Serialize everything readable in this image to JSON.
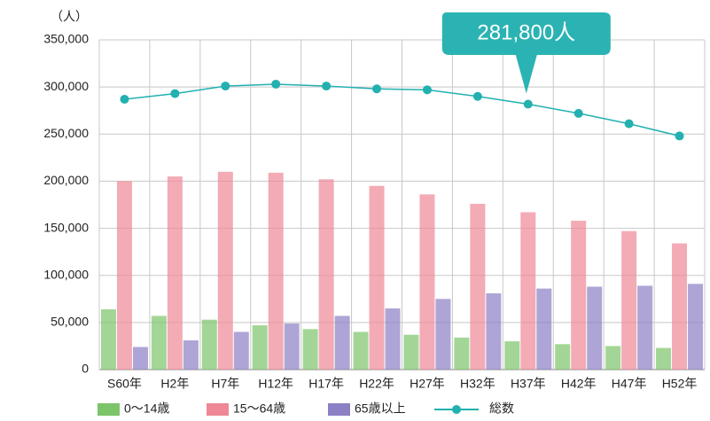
{
  "chart_data": {
    "type": "bar",
    "y_unit_label": "（人）",
    "annotation": "281,800人",
    "annotation_color": "#2bb3b3",
    "categories": [
      "S60年",
      "H2年",
      "H7年",
      "H12年",
      "H17年",
      "H22年",
      "H27年",
      "H32年",
      "H37年",
      "H42年",
      "H47年",
      "H52年"
    ],
    "series": [
      {
        "name": "0〜14歳",
        "type": "bar",
        "color": "#7cc46a",
        "values": [
          64000,
          57000,
          53000,
          47000,
          43000,
          40000,
          37000,
          34000,
          30000,
          27000,
          25000,
          23000
        ]
      },
      {
        "name": "15〜64歳",
        "type": "bar",
        "color": "#ee8896",
        "values": [
          200000,
          205000,
          210000,
          209000,
          202000,
          195000,
          186000,
          176000,
          167000,
          158000,
          147000,
          134000
        ]
      },
      {
        "name": "65歳以上",
        "type": "bar",
        "color": "#8c7fc4",
        "values": [
          24000,
          31000,
          40000,
          49000,
          57000,
          65000,
          75000,
          81000,
          86000,
          88000,
          89000,
          91000
        ]
      },
      {
        "name": "総数",
        "type": "line",
        "color": "#22b0b0",
        "values": [
          287000,
          293000,
          301000,
          303000,
          301000,
          298000,
          297000,
          290000,
          281800,
          272000,
          261000,
          248000
        ]
      }
    ],
    "ylim": [
      0,
      350000
    ],
    "yticks": [
      0,
      {
        "value": 50000,
        "label": "50,000"
      },
      {
        "value": 100000,
        "label": "100,000"
      },
      {
        "value": 150000,
        "label": "150,000"
      },
      {
        "value": 200000,
        "label": "200,000"
      },
      {
        "value": 250000,
        "label": "250,000"
      },
      {
        "value": 300000,
        "label": "300,000"
      },
      {
        "value": 350000,
        "label": "350,000"
      }
    ],
    "grid": true
  }
}
